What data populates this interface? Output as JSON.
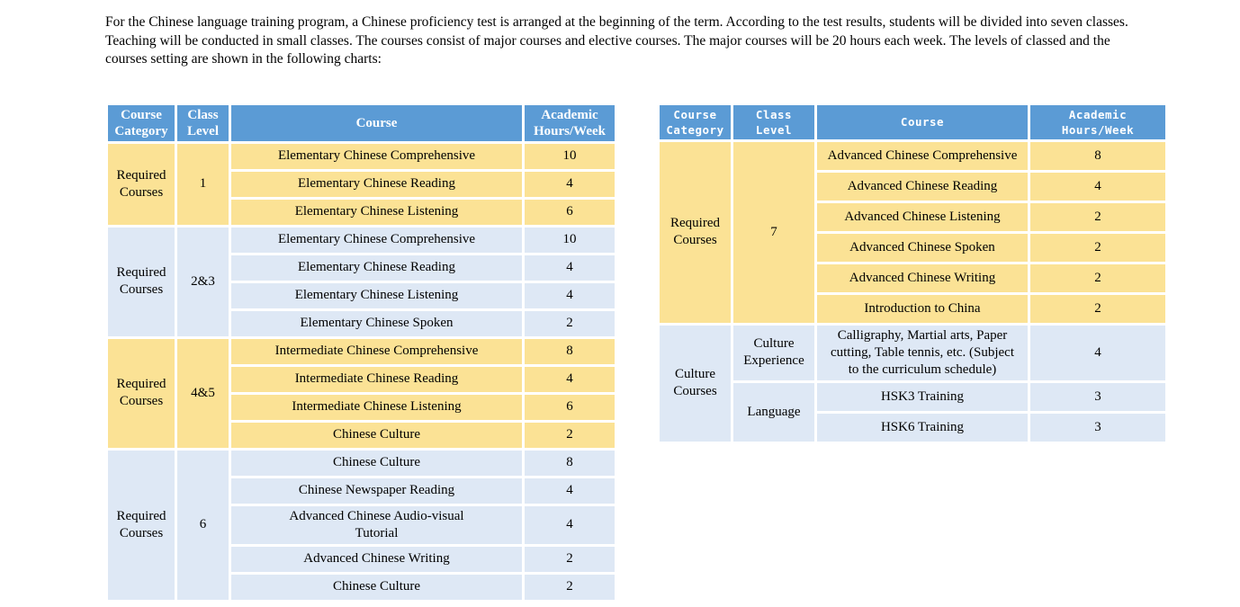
{
  "intro": {
    "text": "For the Chinese language training program, a Chinese proficiency test is arranged at the beginning of the term. According to the test results, students will be divided into seven classes. Teaching will be conducted in small classes. The courses consist of major courses and elective courses. The major courses will be 20 hours each week. The levels of classed and the courses setting are shown in the following charts:"
  },
  "colors": {
    "header_bg": "#5b9bd5",
    "header_text": "#ffffff",
    "row_yellow": "#fbe295",
    "row_blue": "#dee8f5",
    "grid": "#ffffff",
    "body_text": "#000000"
  },
  "tables": [
    {
      "headers": [
        "Course Category",
        "Class Level",
        "Course",
        "Academic Hours/Week"
      ],
      "groups": [
        {
          "category": "Required Courses",
          "color": "yellow",
          "levels": [
            {
              "level": "1",
              "rows": [
                {
                  "course": "Elementary Chinese Comprehensive",
                  "hours": "10"
                },
                {
                  "course": "Elementary Chinese Reading",
                  "hours": "4"
                },
                {
                  "course": "Elementary Chinese Listening",
                  "hours": "6"
                }
              ]
            }
          ]
        },
        {
          "category": "Required Courses",
          "color": "blue",
          "levels": [
            {
              "level": "2&3",
              "rows": [
                {
                  "course": "Elementary Chinese Comprehensive",
                  "hours": "10"
                },
                {
                  "course": "Elementary Chinese Reading",
                  "hours": "4"
                },
                {
                  "course": "Elementary Chinese Listening",
                  "hours": "4"
                },
                {
                  "course": "Elementary Chinese Spoken",
                  "hours": "2"
                }
              ]
            }
          ]
        },
        {
          "category": "Required Courses",
          "color": "yellow",
          "levels": [
            {
              "level": "4&5",
              "rows": [
                {
                  "course": "Intermediate Chinese Comprehensive",
                  "hours": "8"
                },
                {
                  "course": "Intermediate Chinese Reading",
                  "hours": "4"
                },
                {
                  "course": "Intermediate Chinese Listening",
                  "hours": "6"
                },
                {
                  "course": "Chinese Culture",
                  "hours": "2"
                }
              ]
            }
          ]
        },
        {
          "category": "Required Courses",
          "color": "blue",
          "levels": [
            {
              "level": "6",
              "rows": [
                {
                  "course": "Chinese Culture",
                  "hours": "8"
                },
                {
                  "course": "Chinese Newspaper Reading",
                  "hours": "4"
                },
                {
                  "course": "Advanced Chinese Audio-visual Tutorial",
                  "hours": "4"
                },
                {
                  "course": "Advanced Chinese Writing",
                  "hours": "2"
                },
                {
                  "course": "Chinese Culture",
                  "hours": "2"
                }
              ]
            }
          ]
        }
      ]
    },
    {
      "headers": [
        "Course Category",
        "Class Level",
        "Course",
        "Academic Hours/Week"
      ],
      "groups": [
        {
          "category": "Required Courses",
          "color": "yellow",
          "levels": [
            {
              "level": "7",
              "rows": [
                {
                  "course": "Advanced Chinese Comprehensive",
                  "hours": "8"
                },
                {
                  "course": "Advanced Chinese Reading",
                  "hours": "4"
                },
                {
                  "course": "Advanced Chinese Listening",
                  "hours": "2"
                },
                {
                  "course": "Advanced Chinese Spoken",
                  "hours": "2"
                },
                {
                  "course": "Advanced Chinese Writing",
                  "hours": "2"
                },
                {
                  "course": "Introduction to China",
                  "hours": "2"
                }
              ]
            }
          ]
        },
        {
          "category": "Culture Courses",
          "color": "blue",
          "levels": [
            {
              "level": "Culture Experience",
              "rows": [
                {
                  "course": "Calligraphy, Martial arts, Paper cutting, Table tennis, etc. (Subject to the curriculum schedule)",
                  "hours": "4"
                }
              ]
            },
            {
              "level": "Language",
              "rows": [
                {
                  "course": "HSK3 Training",
                  "hours": "3"
                },
                {
                  "course": "HSK6 Training",
                  "hours": "3"
                }
              ]
            }
          ]
        }
      ]
    }
  ]
}
